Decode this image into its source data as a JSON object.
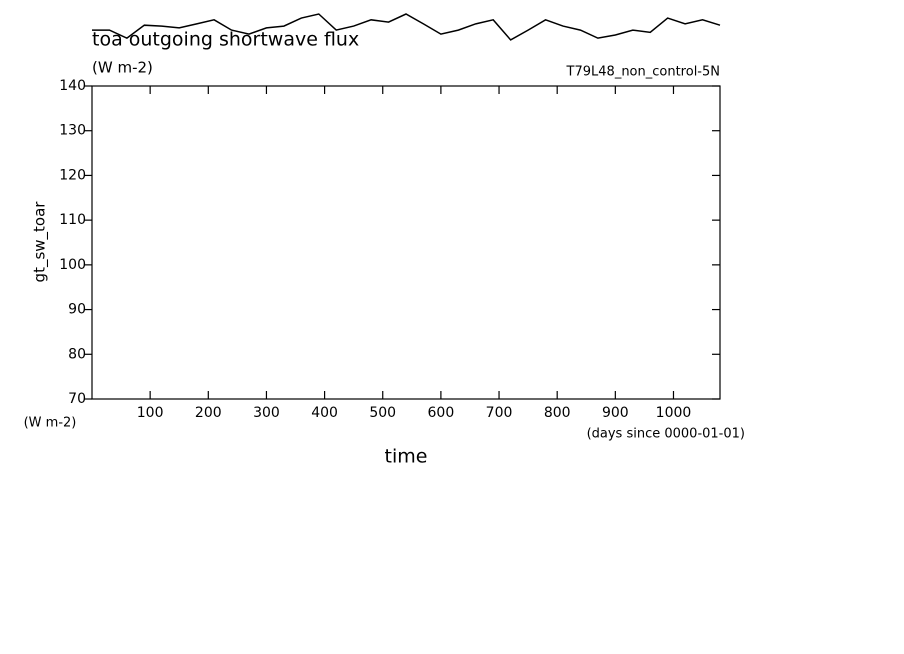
{
  "chart_data": {
    "type": "line",
    "title": "toa outgoing shortwave flux",
    "subtitle": "(W m-2)",
    "annotation": "T79L48_non_control-5N",
    "ylabel": "gt_sw_toar",
    "yunits": "(W m-2)",
    "xlabel": "time",
    "xunits": "(days since 0000-01-01)",
    "x": [
      0,
      30,
      60,
      90,
      120,
      150,
      180,
      210,
      240,
      270,
      300,
      330,
      360,
      390,
      420,
      450,
      480,
      510,
      540,
      570,
      600,
      630,
      660,
      690,
      720,
      750,
      780,
      810,
      840,
      870,
      900,
      930,
      960,
      990,
      1020,
      1050,
      1080
    ],
    "series": [
      {
        "name": "gt_sw_toar",
        "color": "#000000",
        "values": [
          152.5,
          152.5,
          150.7,
          153.6,
          153.4,
          153.0,
          153.9,
          154.8,
          152.5,
          151.6,
          153.0,
          153.4,
          155.2,
          156.1,
          152.5,
          153.4,
          154.8,
          154.3,
          156.1,
          153.9,
          151.6,
          152.5,
          153.9,
          154.8,
          150.3,
          152.5,
          154.8,
          153.4,
          152.5,
          150.7,
          151.4,
          152.5,
          152.0,
          155.2,
          153.9,
          154.8,
          153.6
        ]
      }
    ],
    "xlim": [
      0,
      1080
    ],
    "ylim": [
      70,
      140
    ],
    "xticks": [
      100,
      200,
      300,
      400,
      500,
      600,
      700,
      800,
      900,
      1000
    ],
    "yticks": [
      70,
      80,
      90,
      100,
      110,
      120,
      130,
      140
    ]
  }
}
